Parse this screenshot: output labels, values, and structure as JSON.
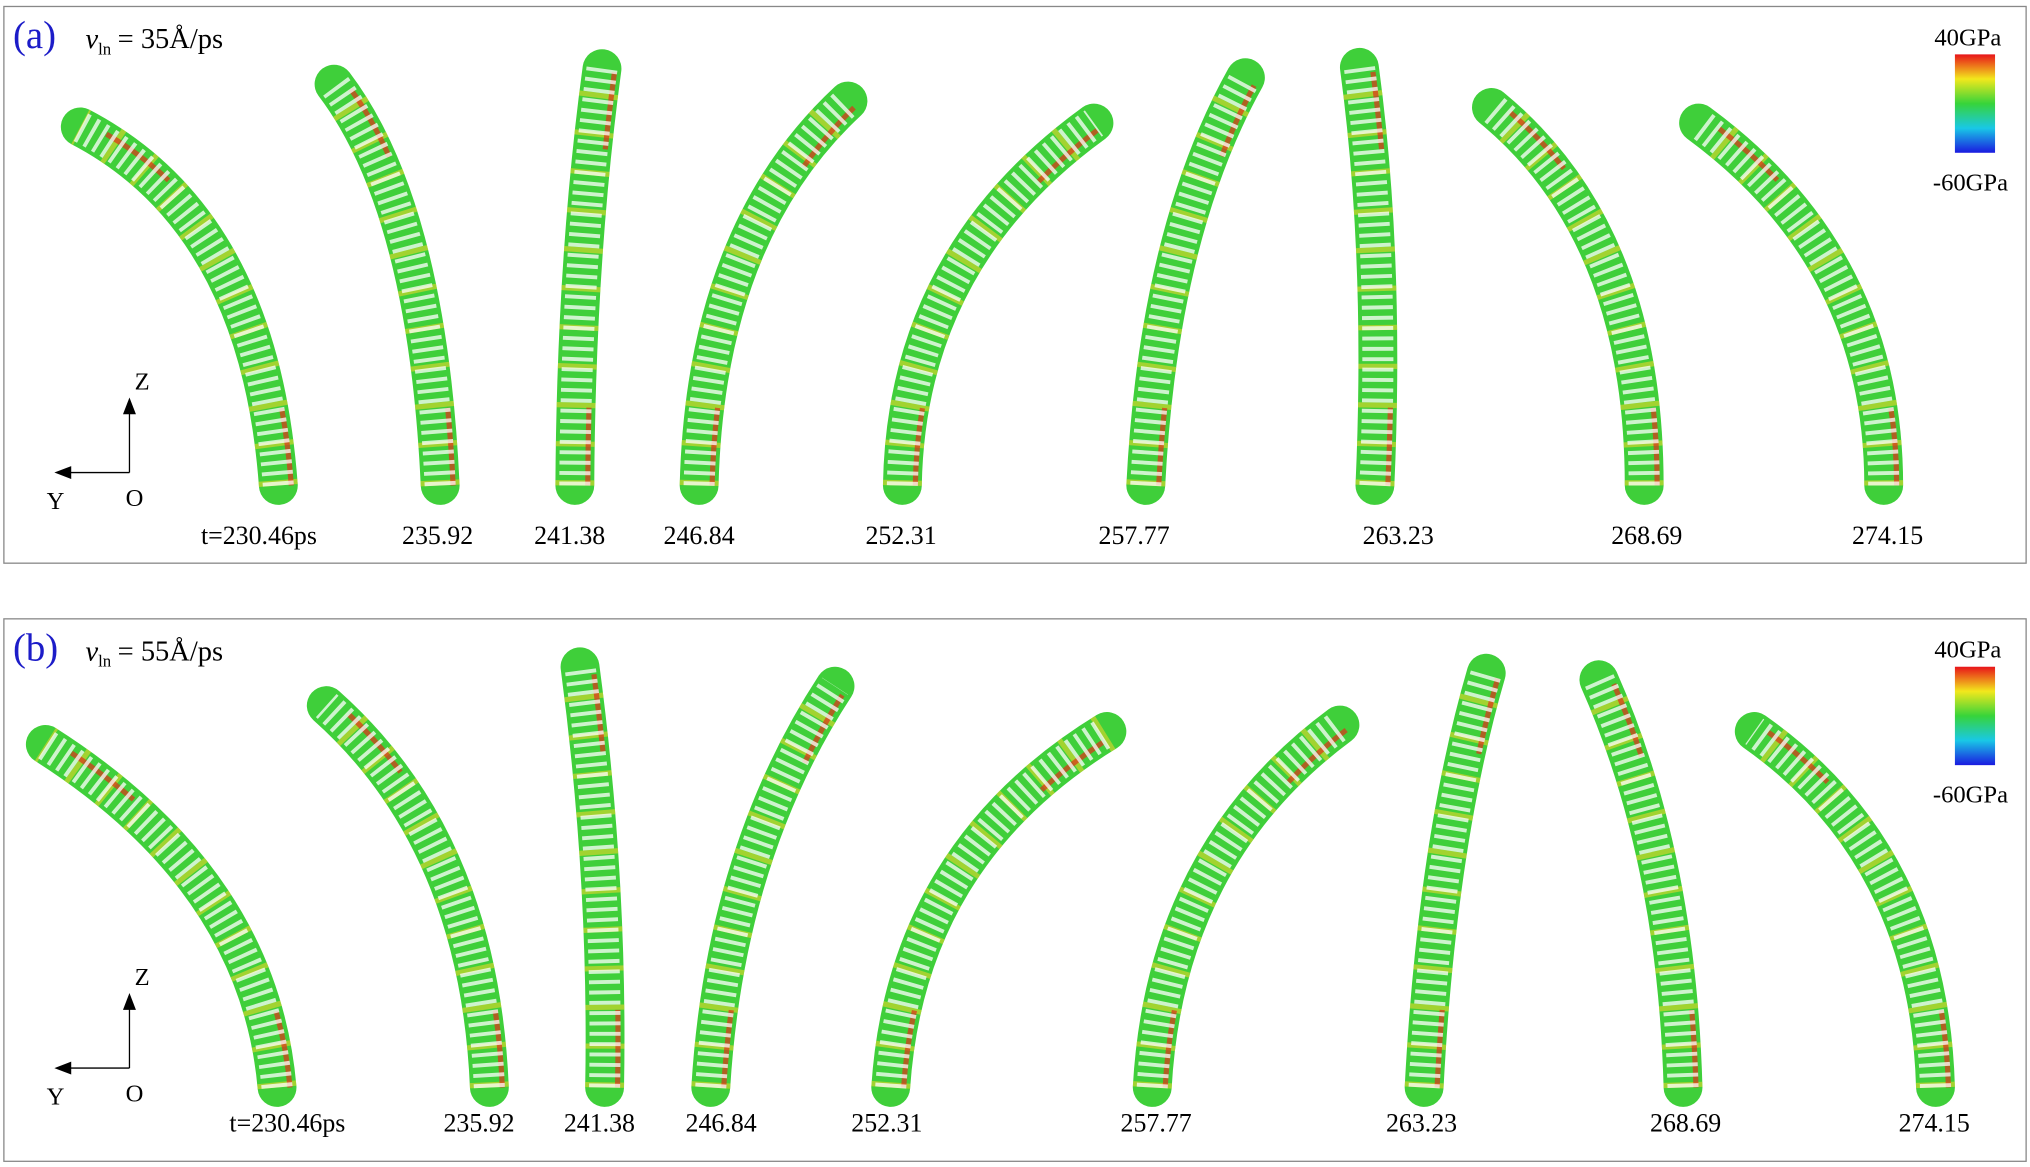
{
  "panels": [
    {
      "label": "(a)",
      "velocity": {
        "symbol": "v",
        "subscript": "ln",
        "text": "= 35Å/ps"
      },
      "colorbar": {
        "max": "40GPa",
        "min": "-60GPa"
      },
      "axes": {
        "z": "Z",
        "y": "Y",
        "o": "O"
      },
      "times": [
        "t=230.46ps",
        "235.92",
        "241.38",
        "246.84",
        "252.31",
        "257.77",
        "263.23",
        "268.69",
        "274.15"
      ]
    },
    {
      "label": "(b)",
      "velocity": {
        "symbol": "v",
        "subscript": "ln",
        "text": "= 55Å/ps"
      },
      "colorbar": {
        "max": "40GPa",
        "min": "-60GPa"
      },
      "axes": {
        "z": "Z",
        "y": "Y",
        "o": "O"
      },
      "times": [
        "t=230.46ps",
        "235.92",
        "241.38",
        "246.84",
        "252.31",
        "257.77",
        "263.23",
        "268.69",
        "274.15"
      ]
    }
  ]
}
